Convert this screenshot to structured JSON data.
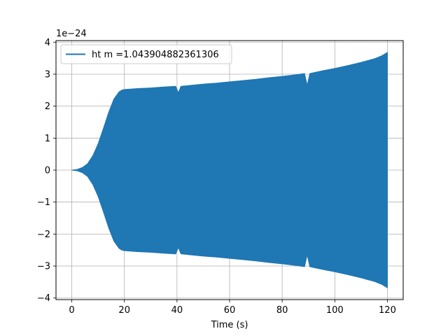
{
  "chart_data": {
    "type": "line",
    "title": "",
    "xlabel": "Time (s)",
    "ylabel": "",
    "offset_label": "1e−24",
    "xlim": [
      -6,
      126
    ],
    "ylim": [
      -4.05,
      4.05
    ],
    "x_ticks": [
      0,
      20,
      40,
      60,
      80,
      100,
      120
    ],
    "y_ticks": [
      -4,
      -3,
      -2,
      -1,
      0,
      1,
      2,
      3,
      4
    ],
    "x_tick_labels": [
      "0",
      "20",
      "40",
      "60",
      "80",
      "100",
      "120"
    ],
    "y_tick_labels": [
      "−4",
      "−3",
      "−2",
      "−1",
      "0",
      "1",
      "2",
      "3",
      "4"
    ],
    "grid": true,
    "legend_position": "upper-left",
    "series": [
      {
        "name": "ht m =1.043904882361306",
        "color": "#1f77b4",
        "envelope": {
          "x": [
            0,
            2,
            4,
            6,
            8,
            10,
            12,
            14,
            16,
            18,
            19,
            20,
            25,
            30,
            35,
            39.5,
            40.5,
            41.5,
            45,
            50,
            55,
            60,
            65,
            70,
            75,
            80,
            85,
            88.5,
            89.5,
            90.5,
            95,
            100,
            105,
            110,
            115,
            118,
            120
          ],
          "upper": [
            0.0,
            0.02,
            0.08,
            0.2,
            0.45,
            0.82,
            1.3,
            1.8,
            2.22,
            2.45,
            2.5,
            2.52,
            2.55,
            2.57,
            2.6,
            2.62,
            2.42,
            2.62,
            2.65,
            2.69,
            2.72,
            2.76,
            2.8,
            2.84,
            2.89,
            2.93,
            2.98,
            3.02,
            2.65,
            3.02,
            3.1,
            3.18,
            3.27,
            3.37,
            3.48,
            3.58,
            3.68
          ],
          "lower": [
            0.0,
            -0.02,
            -0.08,
            -0.2,
            -0.45,
            -0.82,
            -1.3,
            -1.8,
            -2.22,
            -2.45,
            -2.5,
            -2.52,
            -2.55,
            -2.57,
            -2.6,
            -2.62,
            -2.42,
            -2.62,
            -2.65,
            -2.69,
            -2.72,
            -2.76,
            -2.8,
            -2.84,
            -2.89,
            -2.93,
            -2.98,
            -3.02,
            -2.65,
            -3.02,
            -3.1,
            -3.18,
            -3.27,
            -3.37,
            -3.48,
            -3.58,
            -3.68
          ]
        }
      }
    ]
  }
}
